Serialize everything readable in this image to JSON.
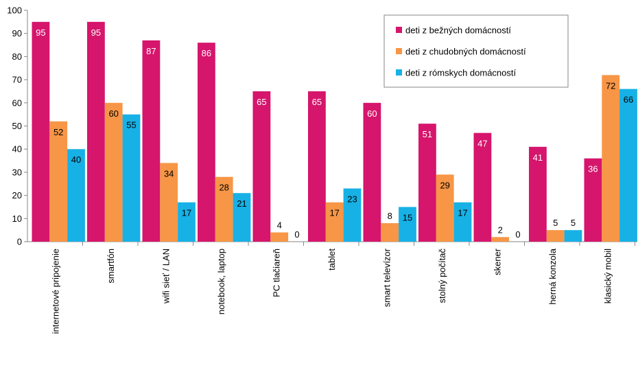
{
  "chart_data": {
    "type": "bar",
    "categories": [
      "internetové pripojenie",
      "smartfón",
      "wifi sieť / LAN",
      "notebook, laptop",
      "PC tlačiareň",
      "tablet",
      "smart televízor",
      "stolný počítač",
      "skener",
      "herná konzola",
      "klasický mobil"
    ],
    "series": [
      {
        "name": "deti z bežných domácností",
        "color": "#d6156c",
        "values": [
          95,
          95,
          87,
          86,
          65,
          65,
          60,
          51,
          47,
          41,
          36
        ]
      },
      {
        "name": "deti z chudobných domácností",
        "color": "#f79646",
        "values": [
          52,
          60,
          34,
          28,
          4,
          17,
          8,
          29,
          2,
          5,
          72
        ]
      },
      {
        "name": "deti z rómskych domácností",
        "color": "#17b1e6",
        "values": [
          40,
          55,
          17,
          21,
          0,
          23,
          15,
          17,
          0,
          5,
          66
        ]
      }
    ],
    "ylim": [
      0,
      100
    ],
    "yticks": [
      0,
      10,
      20,
      30,
      40,
      50,
      60,
      70,
      80,
      90,
      100
    ],
    "grid": false,
    "legend": "top-right"
  }
}
